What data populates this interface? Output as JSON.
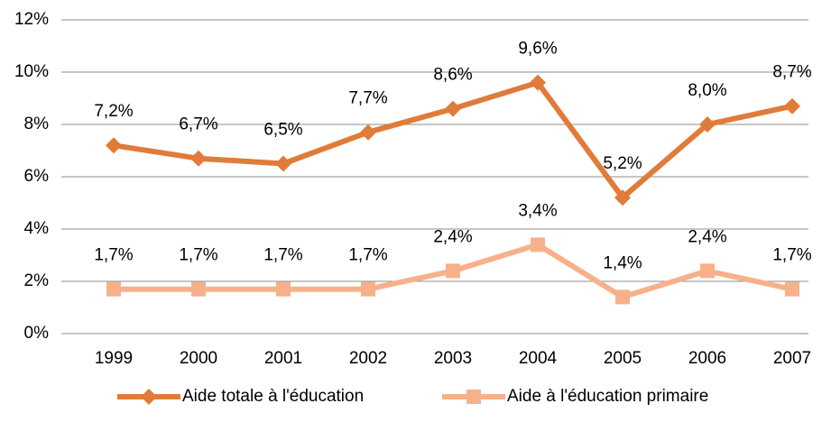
{
  "chart_data": {
    "type": "line",
    "categories": [
      "1999",
      "2000",
      "2001",
      "2002",
      "2003",
      "2004",
      "2005",
      "2006",
      "2007"
    ],
    "series": [
      {
        "name": "Aide totale à l'éducation",
        "color": "#E07B39",
        "marker": "diamond",
        "values": [
          7.2,
          6.7,
          6.5,
          7.7,
          8.6,
          9.6,
          5.2,
          8.0,
          8.7
        ],
        "value_labels": [
          "7,2%",
          "6,7%",
          "6,5%",
          "7,7%",
          "8,6%",
          "9,6%",
          "5,2%",
          "8,0%",
          "8,7%"
        ]
      },
      {
        "name": "Aide à l'éducation primaire",
        "color": "#F7B18A",
        "marker": "square",
        "values": [
          1.7,
          1.7,
          1.7,
          1.7,
          2.4,
          3.4,
          1.4,
          2.4,
          1.7
        ],
        "value_labels": [
          "1,7%",
          "1,7%",
          "1,7%",
          "1,7%",
          "2,4%",
          "3,4%",
          "1,4%",
          "2,4%",
          "1,7%"
        ]
      }
    ],
    "ylim": [
      0,
      12
    ],
    "yticks": [
      {
        "value": 0,
        "label": "0%"
      },
      {
        "value": 2,
        "label": "2%"
      },
      {
        "value": 4,
        "label": "4%"
      },
      {
        "value": 6,
        "label": "6%"
      },
      {
        "value": 8,
        "label": "8%"
      },
      {
        "value": 10,
        "label": "10%"
      },
      {
        "value": 12,
        "label": "12%"
      }
    ],
    "grid": true,
    "legend": "bottom"
  }
}
